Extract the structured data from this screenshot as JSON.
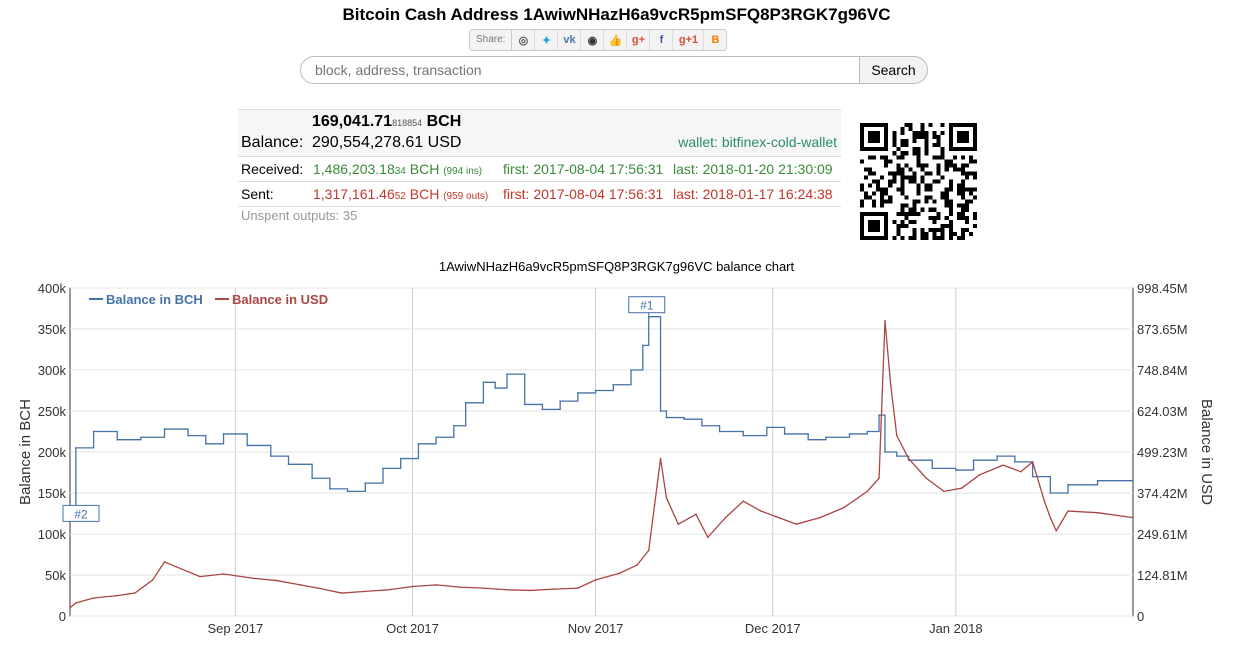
{
  "page": {
    "title": "Bitcoin Cash Address 1AwiwNHazH6a9vcR5pmSFQ8P3RGK7g96VC"
  },
  "share": {
    "label": "Share:",
    "buttons": [
      {
        "icon": "reddit-icon",
        "glyph": "◎",
        "color": "#555"
      },
      {
        "icon": "twitter-icon",
        "glyph": "✦",
        "color": "#1da1f2"
      },
      {
        "icon": "vk-icon",
        "glyph": "vk",
        "color": "#4a76a8"
      },
      {
        "icon": "weibo-icon",
        "glyph": "◉",
        "color": "#333"
      },
      {
        "icon": "like-icon",
        "glyph": "👍",
        "color": "#3b5998"
      },
      {
        "icon": "google-icon",
        "glyph": "g+",
        "color": "#dd4b39"
      },
      {
        "icon": "facebook-icon",
        "glyph": "f",
        "color": "#3b5998"
      },
      {
        "icon": "google-plus-one-icon",
        "glyph": "g+1",
        "color": "#dd4b39"
      },
      {
        "icon": "blogger-icon",
        "glyph": "B",
        "color": "#f57d00"
      }
    ]
  },
  "search": {
    "placeholder": "block, address, transaction",
    "button_label": "Search"
  },
  "balance": {
    "bch_main": "169,041.71",
    "bch_small": "818854",
    "bch_unit": "BCH",
    "label": "Balance:",
    "usd": "290,554,278.61 USD",
    "wallet": "wallet: bitfinex-cold-wallet"
  },
  "received": {
    "label": "Received:",
    "amount_main": "1,486,203.18",
    "amount_small": "34",
    "unit": "BCH",
    "count": "(994 ins)",
    "first": "first: 2017-08-04 17:56:31",
    "last": "last: 2018-01-20 21:30:09"
  },
  "sent": {
    "label": "Sent:",
    "amount_main": "1,317,161.46",
    "amount_small": "52",
    "unit": "BCH",
    "count": "(959 outs)",
    "first": "first: 2017-08-04 17:56:31",
    "last": "last: 2018-01-17 16:24:38"
  },
  "unspent": "Unspent outputs: 35",
  "colors": {
    "bch": "#4572a7",
    "usd": "#aa4643",
    "green": "#3a8a3a",
    "red": "#c0392b"
  },
  "chart_data": {
    "type": "line",
    "title": "1AwiwNHazH6a9vcR5pmSFQ8P3RGK7g96VC balance chart",
    "ylabel": "Balance in BCH",
    "y2label": "Balance in USD",
    "ylim": [
      0,
      400000
    ],
    "y2lim": [
      0,
      1000000000
    ],
    "legend_position": "top-left",
    "grid": true,
    "xtick_labels": [
      "Sep 2017",
      "Oct 2017",
      "Nov 2017",
      "Dec 2017",
      "Jan 2018"
    ],
    "ytick_labels": [
      "0",
      "50k",
      "100k",
      "150k",
      "200k",
      "250k",
      "300k",
      "350k",
      "400k"
    ],
    "y2tick_labels": [
      "0",
      "124.81M",
      "249.61M",
      "374.42M",
      "499.23M",
      "624.03M",
      "748.84M",
      "873.65M",
      "998.45M"
    ],
    "annotations": [
      "#1",
      "#2"
    ],
    "series": [
      {
        "name": "Balance in BCH",
        "color": "#4572a7",
        "x": [
          "2017-08-04",
          "2017-08-05",
          "2017-08-08",
          "2017-08-12",
          "2017-08-16",
          "2017-08-20",
          "2017-08-24",
          "2017-08-27",
          "2017-08-30",
          "2017-09-03",
          "2017-09-07",
          "2017-09-10",
          "2017-09-14",
          "2017-09-17",
          "2017-09-20",
          "2017-09-23",
          "2017-09-26",
          "2017-09-29",
          "2017-10-02",
          "2017-10-05",
          "2017-10-08",
          "2017-10-10",
          "2017-10-13",
          "2017-10-15",
          "2017-10-17",
          "2017-10-20",
          "2017-10-23",
          "2017-10-26",
          "2017-10-29",
          "2017-11-01",
          "2017-11-04",
          "2017-11-07",
          "2017-11-09",
          "2017-11-10",
          "2017-11-12",
          "2017-11-13",
          "2017-11-16",
          "2017-11-19",
          "2017-11-22",
          "2017-11-26",
          "2017-11-30",
          "2017-12-03",
          "2017-12-07",
          "2017-12-10",
          "2017-12-14",
          "2017-12-17",
          "2017-12-19",
          "2017-12-20",
          "2017-12-22",
          "2017-12-24",
          "2017-12-28",
          "2018-01-01",
          "2018-01-04",
          "2018-01-08",
          "2018-01-11",
          "2018-01-14",
          "2018-01-17",
          "2018-01-20",
          "2018-01-25",
          "2018-01-31"
        ],
        "values": [
          130000,
          205000,
          225000,
          215000,
          218000,
          228000,
          220000,
          210000,
          222000,
          208000,
          195000,
          185000,
          168000,
          155000,
          152000,
          162000,
          180000,
          192000,
          210000,
          218000,
          232000,
          260000,
          285000,
          278000,
          295000,
          258000,
          252000,
          262000,
          272000,
          275000,
          282000,
          300000,
          330000,
          365000,
          250000,
          242000,
          240000,
          232000,
          225000,
          220000,
          230000,
          222000,
          215000,
          218000,
          222000,
          225000,
          245000,
          200000,
          195000,
          190000,
          180000,
          178000,
          190000,
          195000,
          188000,
          170000,
          150000,
          160000,
          165000,
          165000
        ]
      },
      {
        "name": "Balance in USD",
        "color": "#aa4643",
        "x": [
          "2017-08-04",
          "2017-08-05",
          "2017-08-08",
          "2017-08-12",
          "2017-08-15",
          "2017-08-18",
          "2017-08-20",
          "2017-08-22",
          "2017-08-26",
          "2017-08-30",
          "2017-09-04",
          "2017-09-08",
          "2017-09-12",
          "2017-09-15",
          "2017-09-19",
          "2017-09-23",
          "2017-09-27",
          "2017-10-01",
          "2017-10-05",
          "2017-10-09",
          "2017-10-13",
          "2017-10-17",
          "2017-10-21",
          "2017-10-25",
          "2017-10-29",
          "2017-11-01",
          "2017-11-05",
          "2017-11-08",
          "2017-11-10",
          "2017-11-11",
          "2017-11-12",
          "2017-11-13",
          "2017-11-15",
          "2017-11-18",
          "2017-11-20",
          "2017-11-23",
          "2017-11-26",
          "2017-11-29",
          "2017-12-02",
          "2017-12-05",
          "2017-12-09",
          "2017-12-13",
          "2017-12-17",
          "2017-12-19",
          "2017-12-20",
          "2017-12-21",
          "2017-12-22",
          "2017-12-24",
          "2017-12-27",
          "2017-12-30",
          "2018-01-02",
          "2018-01-05",
          "2018-01-09",
          "2018-01-12",
          "2018-01-14",
          "2018-01-16",
          "2018-01-17",
          "2018-01-18",
          "2018-01-20",
          "2018-01-25",
          "2018-01-31"
        ],
        "values": [
          25000000,
          40000000,
          55000000,
          62000000,
          70000000,
          110000000,
          165000000,
          150000000,
          120000000,
          128000000,
          115000000,
          108000000,
          95000000,
          85000000,
          70000000,
          75000000,
          80000000,
          90000000,
          95000000,
          88000000,
          85000000,
          80000000,
          78000000,
          82000000,
          85000000,
          110000000,
          130000000,
          155000000,
          200000000,
          340000000,
          480000000,
          360000000,
          280000000,
          310000000,
          240000000,
          300000000,
          350000000,
          320000000,
          300000000,
          280000000,
          300000000,
          330000000,
          380000000,
          420000000,
          900000000,
          700000000,
          550000000,
          480000000,
          420000000,
          380000000,
          390000000,
          430000000,
          460000000,
          440000000,
          470000000,
          350000000,
          300000000,
          260000000,
          320000000,
          315000000,
          300000000
        ]
      }
    ]
  }
}
